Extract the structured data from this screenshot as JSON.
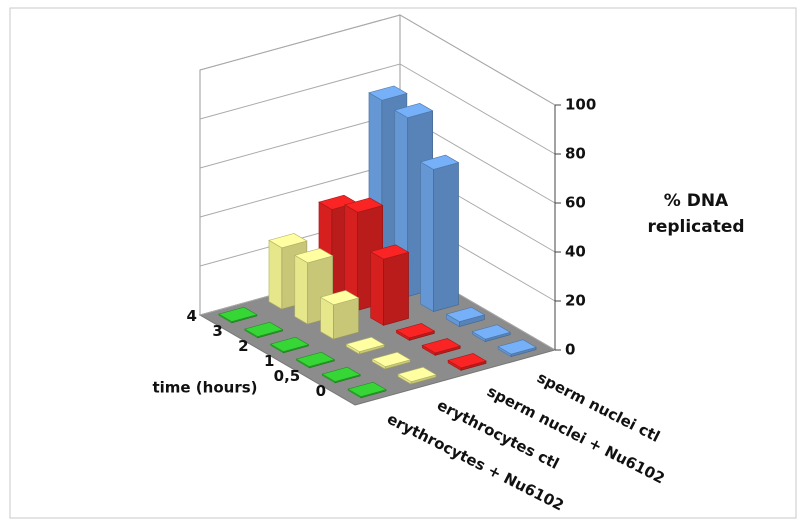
{
  "chart_data": {
    "type": "bar3d",
    "y_label": "% DNA replicated",
    "x_label": "time (hours)",
    "categories": [
      "0",
      "0,5",
      "1",
      "2",
      "3",
      "4"
    ],
    "series": [
      {
        "name": "erythrocytes + Nu6102",
        "color": "#33cc33",
        "values": [
          0.5,
          0.5,
          0.5,
          0.5,
          0.5,
          0.5
        ]
      },
      {
        "name": "erythrocytes ctl",
        "color": "#ffff99",
        "values": [
          1,
          1,
          1,
          14,
          25,
          25
        ]
      },
      {
        "name": "sperm nuclei + Nu6102",
        "color": "#ee2222",
        "values": [
          1,
          1,
          1,
          27,
          40,
          35
        ]
      },
      {
        "name": "sperm nuclei ctl",
        "color": "#6fa8ec",
        "values": [
          1,
          1,
          2,
          58,
          73,
          74
        ]
      }
    ],
    "ylim": [
      0,
      100
    ],
    "yticks": [
      0,
      20,
      40,
      60,
      80,
      100
    ],
    "grid": true
  }
}
